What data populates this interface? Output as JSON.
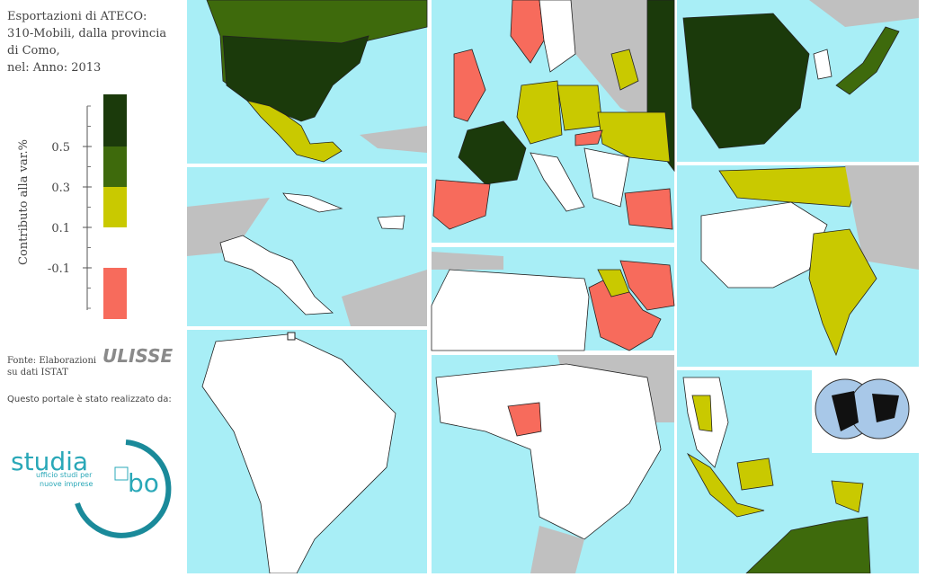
{
  "title": [
    "Esportazioni di ATECO:",
    "310-Mobili, dalla provincia",
    "di Como,",
    "nel: Anno: 2013"
  ],
  "legend": {
    "label": "Contributo alla var.%",
    "ticks": [
      0.5,
      0.3,
      0.1,
      -0.1
    ],
    "colors": [
      "#1b3a0b",
      "#3e6a0c",
      "#c9c900",
      "#ffffff",
      "#f76b5c"
    ]
  },
  "source": [
    "Fonte: Elaborazioni",
    "su dati ISTAT"
  ],
  "credit": "Questo portale è stato realizzato da:",
  "logos": {
    "ulisse": "ULISSE",
    "studia": "studia",
    "bo": "bo",
    "tagline": [
      "ufficio studi per",
      "nuove imprese"
    ]
  }
}
